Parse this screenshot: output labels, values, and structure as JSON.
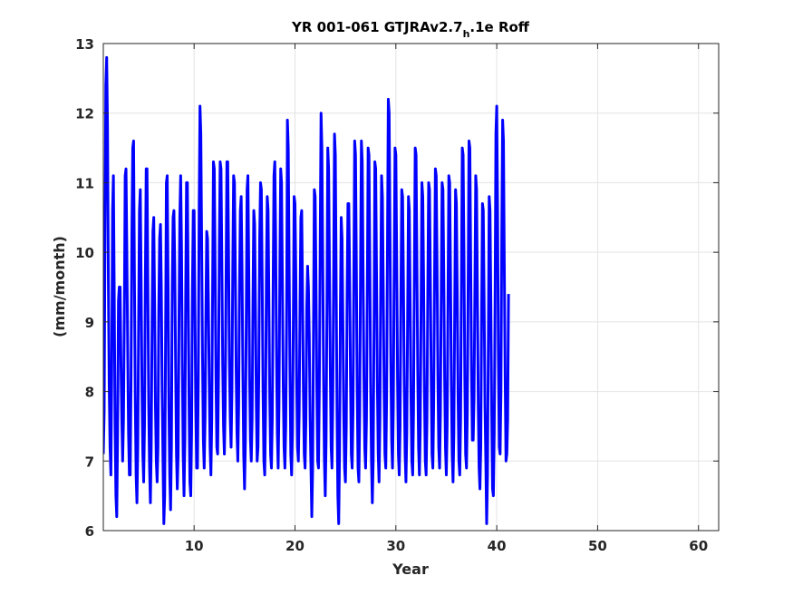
{
  "chart_data": {
    "type": "line",
    "title_main": "YR 001-061 GTJRAv2.7",
    "title_sub": "h",
    "title_tail": ".1e Roff",
    "xlabel": "Year",
    "ylabel": "(mm/month)",
    "xlim": [
      1,
      62
    ],
    "ylim": [
      6,
      13
    ],
    "xticks": [
      10,
      20,
      30,
      40,
      50,
      60
    ],
    "yticks": [
      6,
      7,
      8,
      9,
      10,
      11,
      12,
      13
    ],
    "grid": true,
    "line_color": "#0000ff",
    "series": [
      {
        "x_start": 1,
        "x_step": 0.0833333,
        "values": [
          7.1,
          7.7,
          10.3,
          12.4,
          12.8,
          11.8,
          9.6,
          8.1,
          7.2,
          6.8,
          8.3,
          10.6,
          11.1,
          9.4,
          7.5,
          6.5,
          6.2,
          7.4,
          9.3,
          9.5,
          9.5,
          8.4,
          7.6,
          7.0,
          7.6,
          9.1,
          11.1,
          11.2,
          10.0,
          8.6,
          7.4,
          6.8,
          6.8,
          8.2,
          10.3,
          11.5,
          11.6,
          9.7,
          7.9,
          6.8,
          6.4,
          7.2,
          9.0,
          10.6,
          10.9,
          9.6,
          8.0,
          7.1,
          6.7,
          7.5,
          9.6,
          11.2,
          11.2,
          9.5,
          7.8,
          6.9,
          6.4,
          7.2,
          9.0,
          10.3,
          10.5,
          9.3,
          7.8,
          7.0,
          6.7,
          7.2,
          9.2,
          10.2,
          10.4,
          9.5,
          8.0,
          7.0,
          6.1,
          6.5,
          8.6,
          11.0,
          11.1,
          9.6,
          7.8,
          6.8,
          6.3,
          7.2,
          9.5,
          10.5,
          10.6,
          9.8,
          8.4,
          7.1,
          6.6,
          7.1,
          9.0,
          10.5,
          11.1,
          10.1,
          8.4,
          7.1,
          6.5,
          7.3,
          9.4,
          11.0,
          11.0,
          9.4,
          7.8,
          6.7,
          6.5,
          7.4,
          9.5,
          10.6,
          10.6,
          9.2,
          7.8,
          6.9,
          6.9,
          8.2,
          10.6,
          12.1,
          11.7,
          10.1,
          8.5,
          7.3,
          6.9,
          7.6,
          9.1,
          10.3,
          10.2,
          9.3,
          8.1,
          7.2,
          6.8,
          7.6,
          9.5,
          11.3,
          11.2,
          9.8,
          8.2,
          7.2,
          7.1,
          8.2,
          10.1,
          11.3,
          11.2,
          9.9,
          8.4,
          7.5,
          7.1,
          7.8,
          9.6,
          11.3,
          11.3,
          10.0,
          8.4,
          7.6,
          7.2,
          8.0,
          9.8,
          11.1,
          11.0,
          9.8,
          8.3,
          7.4,
          7.0,
          7.8,
          9.5,
          10.6,
          10.8,
          9.8,
          8.3,
          7.1,
          6.6,
          7.3,
          9.0,
          10.9,
          11.1,
          9.8,
          8.2,
          7.3,
          7.0,
          7.6,
          9.3,
          10.6,
          10.4,
          9.2,
          7.8,
          7.0,
          7.2,
          8.3,
          10.2,
          11.0,
          10.9,
          9.6,
          8.0,
          7.0,
          6.8,
          7.7,
          9.7,
          10.8,
          10.6,
          9.3,
          7.9,
          7.1,
          6.9,
          7.6,
          9.5,
          11.1,
          11.3,
          10.2,
          8.6,
          7.4,
          6.9,
          7.8,
          9.8,
          11.2,
          11.0,
          9.6,
          8.1,
          7.2,
          6.9,
          7.5,
          9.0,
          11.9,
          11.5,
          9.9,
          8.3,
          7.1,
          6.8,
          7.4,
          9.0,
          10.8,
          10.7,
          9.7,
          8.2,
          7.2,
          7.0,
          7.7,
          9.3,
          10.5,
          10.6,
          9.4,
          8.0,
          7.1,
          6.9,
          7.6,
          9.2,
          9.8,
          9.5,
          8.8,
          7.6,
          6.9,
          6.2,
          6.9,
          8.9,
          10.9,
          10.8,
          9.6,
          8.0,
          7.0,
          6.9,
          8.1,
          10.2,
          12.0,
          11.5,
          9.9,
          8.2,
          7.0,
          6.5,
          7.3,
          9.2,
          11.5,
          11.2,
          9.8,
          8.3,
          7.2,
          6.9,
          7.9,
          9.7,
          11.7,
          11.4,
          9.6,
          7.7,
          6.5,
          6.1,
          7.1,
          9.2,
          10.5,
          10.2,
          9.0,
          7.7,
          6.9,
          6.7,
          7.5,
          9.4,
          10.7,
          10.7,
          9.7,
          8.2,
          7.1,
          6.9,
          7.7,
          9.6,
          11.6,
          11.4,
          9.8,
          8.0,
          6.9,
          6.7,
          7.7,
          9.8,
          11.6,
          11.3,
          9.7,
          8.2,
          7.2,
          6.9,
          7.6,
          9.4,
          11.5,
          11.4,
          9.9,
          8.1,
          7.0,
          6.4,
          7.0,
          8.9,
          11.3,
          11.2,
          9.7,
          8.1,
          7.1,
          6.7,
          7.6,
          9.6,
          11.1,
          10.8,
          9.5,
          8.0,
          7.1,
          6.9,
          7.9,
          10.1,
          12.2,
          12.0,
          10.3,
          8.4,
          7.3,
          6.9,
          7.8,
          9.8,
          11.5,
          11.4,
          9.9,
          8.2,
          7.1,
          6.8,
          7.5,
          9.4,
          10.9,
          10.8,
          9.6,
          8.1,
          7.1,
          6.7,
          7.4,
          9.1,
          10.8,
          10.6,
          9.3,
          7.9,
          7.0,
          6.8,
          7.7,
          9.7,
          11.5,
          11.4,
          9.9,
          8.3,
          7.2,
          6.8,
          7.5,
          9.3,
          11.0,
          10.8,
          9.6,
          8.0,
          7.0,
          6.8,
          7.6,
          9.5,
          11.0,
          10.9,
          9.7,
          8.2,
          7.1,
          6.9,
          7.8,
          9.6,
          11.2,
          11.1,
          9.8,
          8.2,
          7.2,
          6.9,
          7.7,
          9.5,
          11.0,
          10.9,
          9.7,
          8.2,
          7.2,
          6.8,
          7.5,
          9.3,
          11.1,
          11.0,
          9.7,
          8.1,
          7.1,
          6.7,
          7.4,
          9.2,
          10.9,
          10.7,
          9.4,
          7.9,
          7.0,
          6.8,
          7.6,
          9.6,
          11.5,
          11.4,
          10.0,
          8.2,
          7.1,
          6.9,
          7.7,
          9.6,
          11.6,
          11.5,
          9.9,
          8.3,
          7.3,
          7.3,
          7.9,
          9.5,
          11.1,
          10.9,
          9.4,
          7.8,
          6.9,
          6.6,
          7.2,
          9.1,
          10.7,
          10.6,
          9.3,
          7.8,
          7.0,
          6.1,
          6.8,
          8.7,
          10.8,
          10.6,
          9.3,
          7.7,
          6.6,
          6.5,
          7.4,
          9.3,
          11.7,
          12.1,
          10.6,
          8.5,
          7.2,
          7.1,
          8.0,
          10.3,
          11.9,
          11.6,
          9.8,
          8.2,
          7.0,
          7.1,
          7.6,
          9.4
        ]
      }
    ]
  }
}
